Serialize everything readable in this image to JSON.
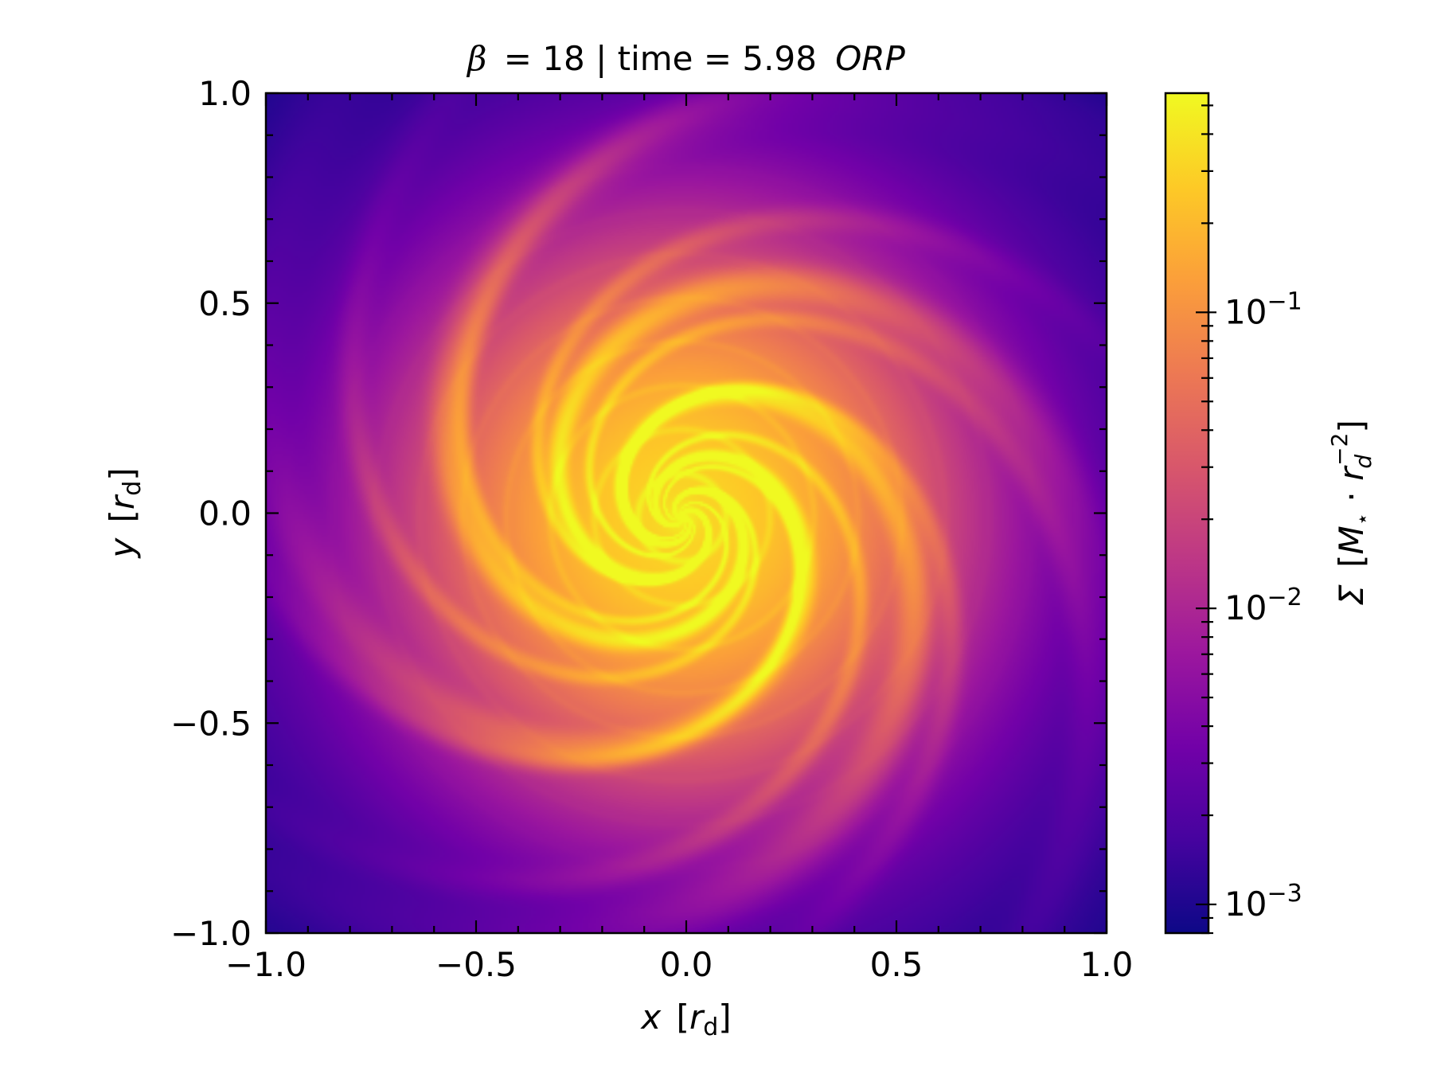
{
  "chart_data": {
    "type": "heatmap",
    "title": {
      "beta_symbol": "β",
      "beta_value": "= 18 | time = 5.98",
      "time_unit": "ORP"
    },
    "x_axis": {
      "label_var": "x",
      "label_unit": "r",
      "label_sub": "d",
      "range": [
        -1.0,
        1.0
      ],
      "major_ticks": [
        -1.0,
        -0.5,
        0.0,
        0.5,
        1.0
      ],
      "tick_labels": [
        "−1.0",
        "−0.5",
        "0.0",
        "0.5",
        "1.0"
      ]
    },
    "y_axis": {
      "label_var": "y",
      "label_unit": "r",
      "label_sub": "d",
      "range": [
        -1.0,
        1.0
      ],
      "major_ticks": [
        -1.0,
        -0.5,
        0.0,
        0.5,
        1.0
      ],
      "tick_labels": [
        "−1.0",
        "−0.5",
        "0.0",
        "0.5",
        "1.0"
      ]
    },
    "colorbar": {
      "quantity": "Σ",
      "unit_text": "[M⋆ · r_d^−2]",
      "scale": "log",
      "range": [
        0.0008,
        0.55
      ],
      "major_ticks": [
        0.001,
        0.01,
        0.1
      ],
      "tick_labels": [
        {
          "base": "10",
          "exp": "−3"
        },
        {
          "base": "10",
          "exp": "−2"
        },
        {
          "base": "10",
          "exp": "−1"
        }
      ],
      "colormap": "plasma",
      "colormap_stops": [
        "#0d0887",
        "#46039f",
        "#7201a8",
        "#9c179e",
        "#bd3786",
        "#d8576b",
        "#ed7953",
        "#fb9f3a",
        "#fdca26",
        "#f0f921"
      ]
    },
    "field_description": {
      "center": [
        -0.01,
        -0.01
      ],
      "spiral_arms": 4,
      "background_min_corner": 0.0009,
      "peak": 0.5
    }
  }
}
